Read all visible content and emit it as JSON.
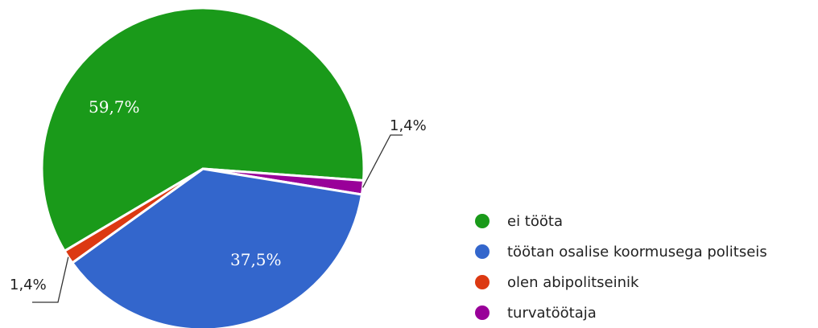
{
  "chart_data": {
    "type": "pie",
    "categories": [
      "ei tööta",
      "töötan osalise koormusega politseis",
      "olen abipolitseinik",
      "turvatöötaja"
    ],
    "values": [
      59.7,
      37.5,
      1.4,
      1.4
    ],
    "labels": [
      "59,7%",
      "37,5%",
      "1,4%",
      "1,4%"
    ],
    "colors": [
      "#1a9a1a",
      "#3366cc",
      "#dc3912",
      "#990099"
    ],
    "legend_position": "right-bottom",
    "title": ""
  }
}
